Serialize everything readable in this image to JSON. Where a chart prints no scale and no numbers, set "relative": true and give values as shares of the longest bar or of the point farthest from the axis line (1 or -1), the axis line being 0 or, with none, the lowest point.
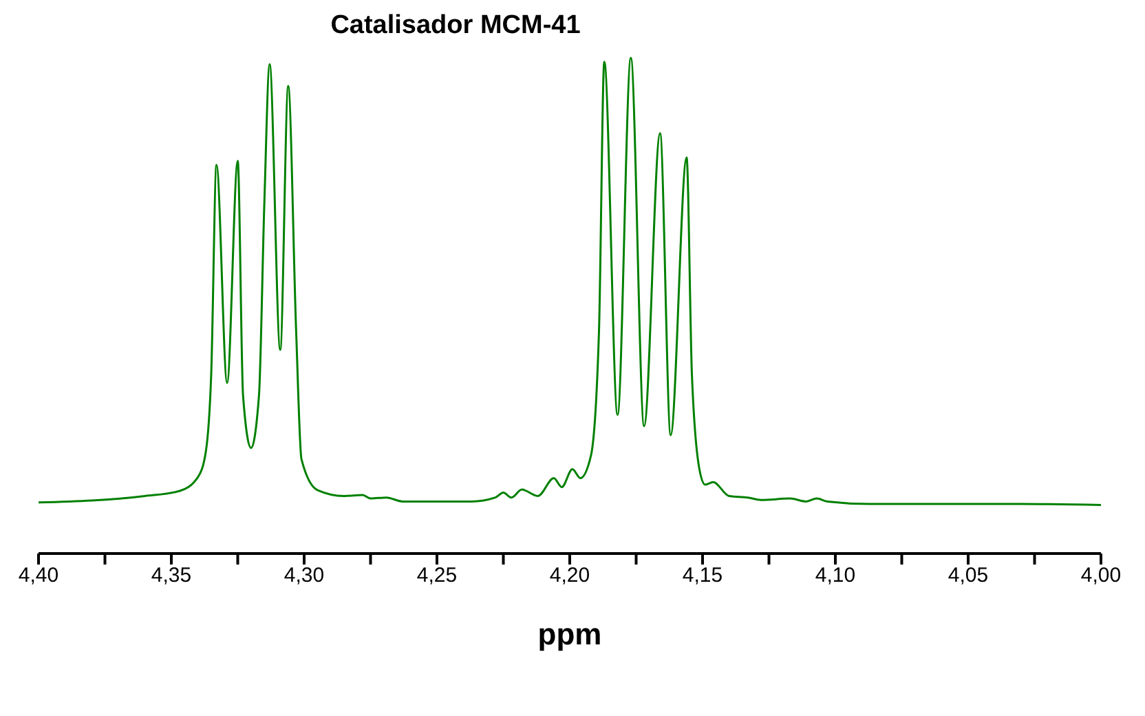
{
  "chart_data": {
    "type": "line",
    "title": "Catalisador MCM-41",
    "xlabel": "ppm",
    "relative": true,
    "color": "#008000",
    "grid": false,
    "legend": false,
    "marker": "none",
    "line_style": "solid",
    "xlim": [
      4.4,
      4.0
    ],
    "xticks": [
      {
        "value": 4.4,
        "label": "4,40"
      },
      {
        "value": 4.375,
        "label": null
      },
      {
        "value": 4.35,
        "label": "4,35"
      },
      {
        "value": 4.325,
        "label": null
      },
      {
        "value": 4.3,
        "label": "4,30"
      },
      {
        "value": 4.275,
        "label": null
      },
      {
        "value": 4.25,
        "label": "4,25"
      },
      {
        "value": 4.225,
        "label": null
      },
      {
        "value": 4.2,
        "label": "4,20"
      },
      {
        "value": 4.175,
        "label": null
      },
      {
        "value": 4.15,
        "label": "4,15"
      },
      {
        "value": 4.125,
        "label": null
      },
      {
        "value": 4.1,
        "label": "4,10"
      },
      {
        "value": 4.075,
        "label": null
      },
      {
        "value": 4.05,
        "label": "4,05"
      },
      {
        "value": 4.025,
        "label": null
      },
      {
        "value": 4.0,
        "label": "4,00"
      }
    ],
    "x": [
      4.4,
      4.36,
      4.347,
      4.34,
      4.337,
      4.335,
      4.333,
      4.329,
      4.325,
      4.323,
      4.32,
      4.317,
      4.315,
      4.313,
      4.309,
      4.306,
      4.303,
      4.301,
      4.295,
      4.285,
      4.278,
      4.275,
      4.269,
      4.263,
      4.237,
      4.228,
      4.225,
      4.222,
      4.218,
      4.212,
      4.206,
      4.203,
      4.199,
      4.196,
      4.192,
      4.189,
      4.187,
      4.182,
      4.177,
      4.172,
      4.166,
      4.162,
      4.156,
      4.154,
      4.151,
      4.149,
      4.146,
      4.14,
      4.133,
      4.128,
      4.117,
      4.111,
      4.107,
      4.103,
      4.087,
      4.059,
      4.03,
      4.0
    ],
    "values": [
      0.103,
      0.116,
      0.126,
      0.154,
      0.206,
      0.36,
      0.784,
      0.344,
      0.792,
      0.319,
      0.213,
      0.319,
      0.704,
      0.987,
      0.411,
      0.943,
      0.447,
      0.19,
      0.128,
      0.116,
      0.118,
      0.111,
      0.113,
      0.105,
      0.105,
      0.113,
      0.123,
      0.113,
      0.129,
      0.116,
      0.152,
      0.134,
      0.17,
      0.152,
      0.198,
      0.447,
      0.992,
      0.28,
      1.0,
      0.257,
      0.848,
      0.239,
      0.799,
      0.36,
      0.165,
      0.139,
      0.144,
      0.116,
      0.113,
      0.108,
      0.111,
      0.105,
      0.111,
      0.105,
      0.1,
      0.1,
      0.1,
      0.098
    ]
  }
}
